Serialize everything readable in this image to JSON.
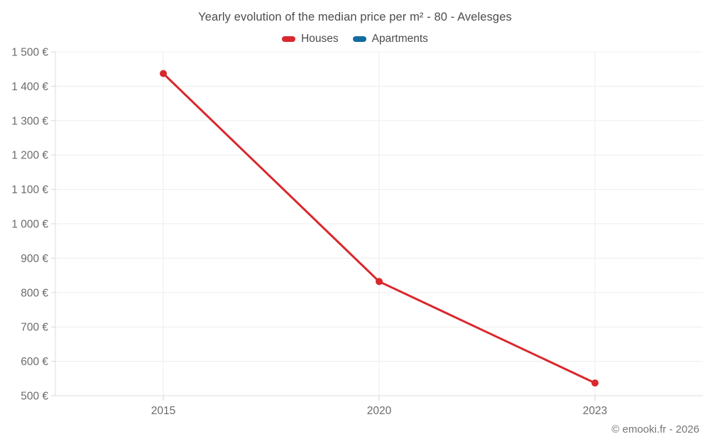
{
  "header": {
    "title": "Yearly evolution of the median price per m² - 80 - Avelesges"
  },
  "legend": {
    "items": [
      {
        "label": "Houses",
        "color": "#d9282d"
      },
      {
        "label": "Apartments",
        "color": "#136c9e"
      }
    ]
  },
  "footer": {
    "credit": "© emooki.fr - 2026"
  },
  "chart_data": {
    "type": "line",
    "title": "Yearly evolution of the median price per m² - 80 - Avelesges",
    "categories": [
      "2015",
      "2020",
      "2023"
    ],
    "series": [
      {
        "name": "Houses",
        "color": "#d9282d",
        "values": [
          1437,
          832,
          537
        ]
      },
      {
        "name": "Apartments",
        "color": "#136c9e",
        "values": []
      }
    ],
    "xlabel": "",
    "ylabel": "",
    "ylim": [
      500,
      1500
    ],
    "ytick_step": 100,
    "yticks": [
      {
        "value": 1500,
        "label": "1 500 €"
      },
      {
        "value": 1400,
        "label": "1 400 €"
      },
      {
        "value": 1300,
        "label": "1 300 €"
      },
      {
        "value": 1200,
        "label": "1 200 €"
      },
      {
        "value": 1100,
        "label": "1 100 €"
      },
      {
        "value": 1000,
        "label": "1 000 €"
      },
      {
        "value": 900,
        "label": "900 €"
      },
      {
        "value": 800,
        "label": "800 €"
      },
      {
        "value": 700,
        "label": "700 €"
      },
      {
        "value": 600,
        "label": "600 €"
      },
      {
        "value": 500,
        "label": "500 €"
      }
    ],
    "grid": true,
    "legend_position": "top"
  }
}
